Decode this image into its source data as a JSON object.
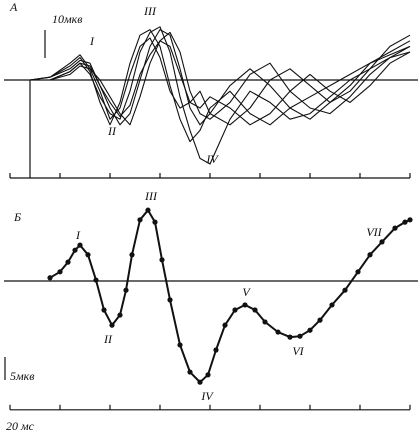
{
  "chart_data": [
    {
      "type": "line",
      "panel_label": "A",
      "scale_label": "10мкв",
      "color": "#111",
      "annotations": [
        "I",
        "II",
        "III",
        "IV"
      ],
      "x": [
        0,
        4,
        8,
        12,
        14,
        16,
        18,
        20,
        22,
        24,
        26,
        28,
        30,
        32,
        34,
        36,
        38,
        40,
        44,
        48,
        52,
        56,
        60,
        64,
        68,
        72,
        76,
        80
      ],
      "series": [
        {
          "values": [
            0,
            0,
            1,
            5,
            8,
            3,
            -8,
            -16,
            -8,
            6,
            16,
            18,
            12,
            -2,
            -14,
            -22,
            -18,
            -10,
            -4,
            -12,
            -16,
            -10,
            -6,
            -2,
            2,
            6,
            9,
            12
          ]
        },
        {
          "values": [
            0,
            0,
            0,
            3,
            6,
            2,
            -6,
            -12,
            -14,
            -4,
            10,
            17,
            19,
            10,
            -6,
            -18,
            -28,
            -30,
            -14,
            -4,
            -8,
            -14,
            -12,
            -6,
            0,
            4,
            8,
            10
          ]
        },
        {
          "values": [
            0,
            0,
            1,
            4,
            7,
            6,
            -2,
            -10,
            -16,
            -12,
            0,
            12,
            18,
            16,
            4,
            -10,
            -16,
            -12,
            -2,
            4,
            -2,
            -10,
            -14,
            -8,
            -2,
            6,
            10,
            14
          ]
        },
        {
          "values": [
            0,
            0,
            0,
            2,
            5,
            4,
            0,
            -6,
            -12,
            -16,
            -6,
            6,
            14,
            17,
            10,
            -4,
            -12,
            -14,
            -8,
            2,
            6,
            -4,
            -10,
            -12,
            -6,
            2,
            8,
            12
          ]
        },
        {
          "values": [
            0,
            0,
            1,
            6,
            9,
            4,
            -4,
            -14,
            -10,
            2,
            12,
            15,
            8,
            -4,
            -10,
            -8,
            -4,
            -12,
            -16,
            -10,
            0,
            4,
            -2,
            -8,
            -4,
            4,
            12,
            16
          ]
        },
        {
          "values": [
            0,
            0,
            0,
            3,
            6,
            5,
            -2,
            -8,
            -13,
            -9,
            2,
            9,
            14,
            12,
            2,
            -8,
            -10,
            -6,
            -10,
            -16,
            -12,
            -4,
            2,
            -4,
            -8,
            -2,
            6,
            10
          ]
        }
      ],
      "xlim": [
        0,
        80
      ],
      "ylim": [
        -35,
        21
      ],
      "xticks": [
        0,
        10,
        20,
        30,
        40,
        50,
        60,
        70,
        80
      ]
    },
    {
      "type": "line",
      "panel_label": "Б",
      "scale_label": "5мкв",
      "time_label": "20 мс",
      "color": "#111",
      "markers": true,
      "annotations": [
        "I",
        "II",
        "III",
        "IV",
        "V",
        "VI",
        "VII"
      ],
      "x": [
        8,
        10,
        11.6,
        13,
        14,
        15.6,
        17.2,
        18.8,
        20.4,
        22,
        23.2,
        24.4,
        26,
        27.6,
        29,
        30.4,
        32,
        34,
        36,
        38,
        39.6,
        41.2,
        43,
        45,
        47,
        49,
        51,
        53.6,
        56,
        58,
        60,
        62,
        64.4,
        67,
        69.6,
        72,
        74.4,
        77,
        79,
        80
      ],
      "series": [
        {
          "values": [
            0.7,
            2.0,
            4.1,
            6.7,
            7.8,
            5.7,
            0.2,
            -6.3,
            -9.6,
            -7.4,
            -2.0,
            5.7,
            13.3,
            15.4,
            12.8,
            4.6,
            -4.1,
            -13.9,
            -19.8,
            -22.0,
            -20.4,
            -15.0,
            -9.6,
            -6.3,
            -5.2,
            -6.3,
            -8.9,
            -11.1,
            -12.2,
            -12.0,
            -10.7,
            -8.5,
            -5.2,
            -2.0,
            2.0,
            5.7,
            8.5,
            11.5,
            12.8,
            13.3
          ]
        }
      ],
      "xlim": [
        0,
        80
      ],
      "ylim": [
        -28,
        18
      ],
      "xticks": [
        0,
        10,
        20,
        30,
        40,
        50,
        60,
        70,
        80
      ]
    }
  ]
}
